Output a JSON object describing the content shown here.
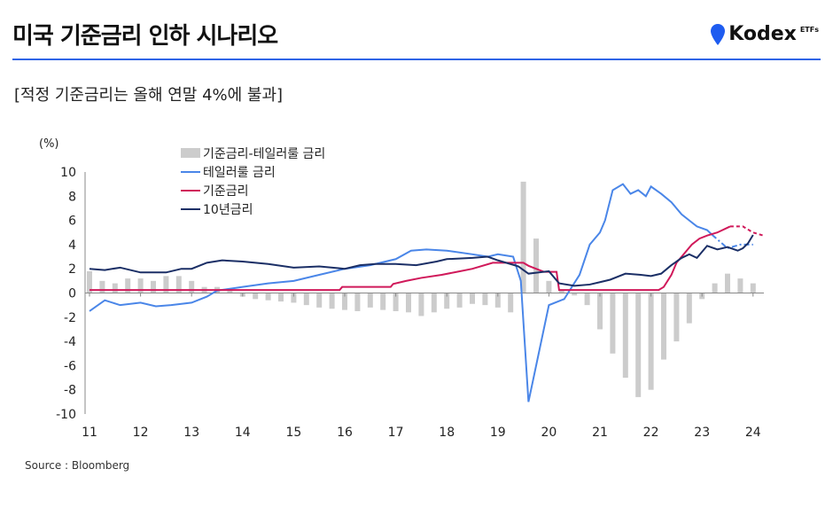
{
  "header": {
    "title": "미국 기준금리 인하 시나리오",
    "logo": "Kodex",
    "logo_sup": "ETFs",
    "brand_color": "#1e5cf0"
  },
  "subtitle": "[적정 기준금리는 올해 연말 4%에 불과]",
  "source": "Source : Bloomberg",
  "chart_data": {
    "type": "bar+line",
    "ylabel": "(%)",
    "ylim": [
      -10,
      10
    ],
    "yticks": [
      "10",
      "8",
      "6",
      "4",
      "2",
      "0",
      "-2",
      "-4",
      "-6",
      "-8",
      "-10"
    ],
    "xlim": [
      2011,
      2024.2
    ],
    "xticks": [
      "11",
      "12",
      "13",
      "14",
      "15",
      "16",
      "17",
      "18",
      "19",
      "20",
      "21",
      "22",
      "23",
      "24"
    ],
    "legend": [
      "기준금리-테일러룰 금리",
      "테일러룰 금리",
      "기준금리",
      "10년금리"
    ],
    "colors": {
      "bar": "#cccccc",
      "taylor": "#4a86e8",
      "fed": "#d0195a",
      "ten": "#1b2f66"
    },
    "bars": {
      "x0": 2011.0,
      "step": 0.25,
      "values": [
        1.8,
        1.0,
        0.8,
        1.2,
        1.2,
        1.0,
        1.4,
        1.4,
        1.0,
        0.5,
        0.5,
        0.3,
        -0.3,
        -0.5,
        -0.6,
        -0.7,
        -0.8,
        -1.0,
        -1.2,
        -1.3,
        -1.4,
        -1.5,
        -1.2,
        -1.4,
        -1.5,
        -1.6,
        -1.9,
        -1.6,
        -1.3,
        -1.2,
        -0.9,
        -1.0,
        -1.2,
        -1.6,
        9.2,
        4.5,
        1.0,
        0.3,
        -0.2,
        -1.0,
        -3.0,
        -5.0,
        -7.0,
        -8.6,
        -8.0,
        -5.5,
        -4.0,
        -2.5,
        -0.5,
        0.8,
        1.6,
        1.2,
        0.8
      ]
    },
    "taylor": {
      "x": [
        2011,
        2011.3,
        2011.6,
        2012,
        2012.3,
        2012.6,
        2013,
        2013.3,
        2013.5,
        2014,
        2014.5,
        2015,
        2015.5,
        2016,
        2016.5,
        2017,
        2017.3,
        2017.6,
        2018,
        2018.5,
        2018.8,
        2019,
        2019.3,
        2019.45,
        2019.6,
        2019.8,
        2020,
        2020.3,
        2020.6,
        2020.8,
        2021,
        2021.1,
        2021.25,
        2021.45,
        2021.6,
        2021.75,
        2021.9,
        2022.0,
        2022.2,
        2022.4,
        2022.6,
        2022.75,
        2022.9,
        2023.1,
        2023.2
      ],
      "y": [
        -1.5,
        -0.6,
        -1.0,
        -0.8,
        -1.1,
        -1.0,
        -0.8,
        -0.3,
        0.2,
        0.5,
        0.8,
        1.0,
        1.5,
        2.0,
        2.3,
        2.8,
        3.5,
        3.6,
        3.5,
        3.2,
        3.0,
        3.2,
        3.0,
        1.0,
        -9.0,
        -5.0,
        -1.0,
        -0.5,
        1.5,
        4.0,
        5.0,
        6.0,
        8.5,
        9.0,
        8.2,
        8.5,
        8.0,
        8.8,
        8.2,
        7.5,
        6.5,
        6.0,
        5.5,
        5.2,
        4.8
      ]
    },
    "taylor_forecast": {
      "x": [
        2023.2,
        2023.5,
        2023.75,
        2024
      ],
      "y": [
        4.8,
        3.7,
        4.0,
        4.0
      ]
    },
    "fed": {
      "x": [
        2011,
        2015.9,
        2015.95,
        2016.9,
        2016.95,
        2017.2,
        2017.5,
        2017.9,
        2018.2,
        2018.5,
        2018.9,
        2019.5,
        2019.6,
        2019.9,
        2020.15,
        2020.2,
        2022.15,
        2022.25,
        2022.4,
        2022.5,
        2022.65,
        2022.8,
        2022.95,
        2023.1,
        2023.3,
        2023.5,
        2023.55
      ],
      "y": [
        0.25,
        0.25,
        0.5,
        0.5,
        0.75,
        1.0,
        1.25,
        1.5,
        1.75,
        2.0,
        2.5,
        2.5,
        2.25,
        1.75,
        1.75,
        0.25,
        0.25,
        0.5,
        1.5,
        2.5,
        3.25,
        4.0,
        4.5,
        4.75,
        5.0,
        5.4,
        5.5
      ]
    },
    "fed_forecast": {
      "x": [
        2023.55,
        2023.8,
        2024,
        2024.2
      ],
      "y": [
        5.5,
        5.5,
        5.0,
        4.75
      ]
    },
    "ten": {
      "x": [
        2011,
        2011.3,
        2011.6,
        2012,
        2012.5,
        2012.8,
        2013,
        2013.3,
        2013.6,
        2014,
        2014.5,
        2015,
        2015.5,
        2016,
        2016.3,
        2016.6,
        2017,
        2017.4,
        2017.8,
        2018,
        2018.5,
        2018.8,
        2019,
        2019.4,
        2019.6,
        2020,
        2020.2,
        2020.5,
        2020.8,
        2021,
        2021.2,
        2021.5,
        2021.8,
        2022,
        2022.2,
        2022.4,
        2022.6,
        2022.75,
        2022.9,
        2023.1,
        2023.3,
        2023.5,
        2023.7,
        2023.8,
        2023.9,
        2024.0
      ],
      "y": [
        2.0,
        1.9,
        2.1,
        1.7,
        1.7,
        2.0,
        2.0,
        2.5,
        2.7,
        2.6,
        2.4,
        2.1,
        2.2,
        2.0,
        2.3,
        2.4,
        2.4,
        2.3,
        2.6,
        2.8,
        2.9,
        3.0,
        2.7,
        2.2,
        1.6,
        1.8,
        0.8,
        0.6,
        0.7,
        0.9,
        1.1,
        1.6,
        1.5,
        1.4,
        1.6,
        2.3,
        2.9,
        3.2,
        2.9,
        3.9,
        3.6,
        3.8,
        3.5,
        3.7,
        4.1,
        4.8
      ]
    }
  }
}
